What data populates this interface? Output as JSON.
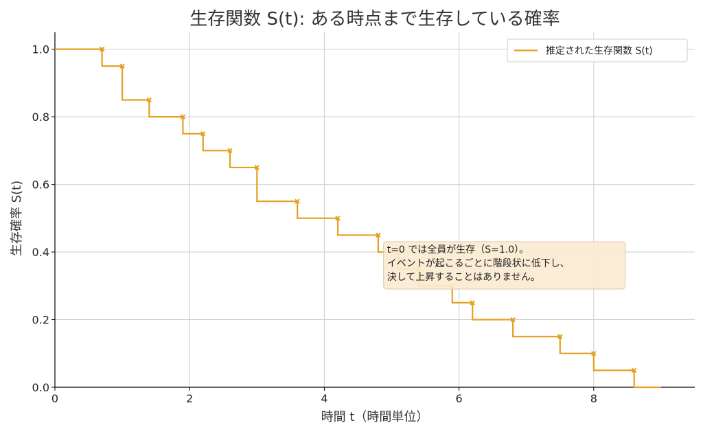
{
  "chart_data": {
    "type": "line",
    "step": "post",
    "title": "生存関数 S(t): ある時点まで生存している確率",
    "xlabel": "時間 t（時間単位）",
    "ylabel": "生存確率 S(t)",
    "xlim": [
      0,
      9.5
    ],
    "ylim": [
      0,
      1.05
    ],
    "xticks": [
      0,
      2,
      4,
      6,
      8
    ],
    "xtick_labels": [
      "0",
      "2",
      "4",
      "6",
      "8"
    ],
    "yticks": [
      0.0,
      0.2,
      0.4,
      0.6,
      0.8,
      1.0
    ],
    "ytick_labels": [
      "0.0",
      "0.2",
      "0.4",
      "0.6",
      "0.8",
      "1.0"
    ],
    "grid": true,
    "legend_position": "top-right",
    "series": [
      {
        "name": "推定された生存関数 S(t)",
        "color": "#E5A020",
        "x": [
          0,
          0.7,
          1.0,
          1.4,
          1.9,
          2.2,
          2.6,
          3.0,
          3.6,
          4.2,
          4.8,
          5.1,
          5.4,
          5.9,
          6.2,
          6.8,
          7.5,
          8.0,
          8.6,
          9.0
        ],
        "y": [
          1.0,
          0.95,
          0.85,
          0.8,
          0.75,
          0.7,
          0.65,
          0.55,
          0.5,
          0.45,
          0.4,
          0.35,
          0.3,
          0.25,
          0.2,
          0.15,
          0.1,
          0.05,
          0.0,
          0.0
        ],
        "event_times": [
          0.7,
          1.0,
          1.4,
          1.9,
          2.2,
          2.6,
          3.0,
          3.6,
          4.2,
          4.8,
          5.1,
          5.4,
          5.9,
          6.2,
          6.8,
          7.5,
          8.0,
          8.6
        ],
        "event_values": [
          1.0,
          0.95,
          0.85,
          0.8,
          0.75,
          0.7,
          0.65,
          0.55,
          0.5,
          0.45,
          0.4,
          0.35,
          0.3,
          0.25,
          0.2,
          0.15,
          0.1,
          0.05
        ]
      }
    ],
    "annotation": {
      "lines": [
        "t=0 では全員が生存（S=1.0）。",
        "イベントが起こるごとに階段状に低下し、",
        "決して上昇することはありません。"
      ],
      "x": 4.9,
      "y": 0.39
    }
  }
}
